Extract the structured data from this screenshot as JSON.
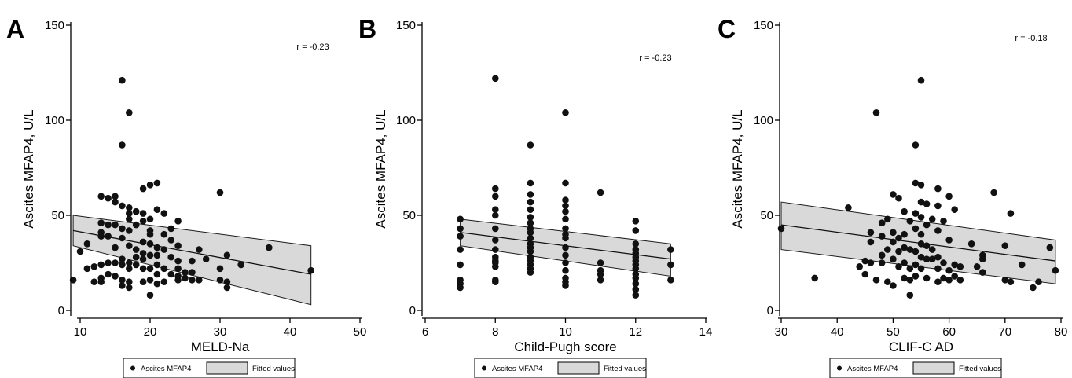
{
  "chart_data": [
    {
      "type": "scatter",
      "panel_label": "A",
      "xlabel": "MELD-Na",
      "ylabel": "Ascites MFAP4, U/L",
      "xlim": [
        8,
        50
      ],
      "ylim": [
        -5,
        152
      ],
      "xticks": [
        10,
        20,
        30,
        40,
        50
      ],
      "yticks": [
        0,
        50,
        100,
        150
      ],
      "annotation": "r = -0.23",
      "legend": {
        "placement": "bottom",
        "entries": [
          "Ascites MFAP4",
          "Fitted values"
        ]
      },
      "fit": {
        "x": [
          9,
          43
        ],
        "y": [
          42,
          19
        ],
        "ci_upper": [
          50,
          34
        ],
        "ci_lower": [
          34,
          3
        ]
      },
      "points": [
        [
          9,
          16
        ],
        [
          10,
          31
        ],
        [
          11,
          35
        ],
        [
          11,
          22
        ],
        [
          12,
          15
        ],
        [
          12,
          23
        ],
        [
          13,
          60
        ],
        [
          13,
          46
        ],
        [
          13,
          41
        ],
        [
          13,
          39
        ],
        [
          13,
          24
        ],
        [
          13,
          17
        ],
        [
          13,
          15
        ],
        [
          14,
          59
        ],
        [
          14,
          45
        ],
        [
          14,
          39
        ],
        [
          14,
          25
        ],
        [
          14,
          19
        ],
        [
          15,
          60
        ],
        [
          15,
          57
        ],
        [
          15,
          45
        ],
        [
          15,
          33
        ],
        [
          15,
          25
        ],
        [
          15,
          18
        ],
        [
          16,
          121
        ],
        [
          16,
          87
        ],
        [
          16,
          55
        ],
        [
          16,
          43
        ],
        [
          16,
          38
        ],
        [
          16,
          27
        ],
        [
          16,
          24
        ],
        [
          16,
          16
        ],
        [
          16,
          13
        ],
        [
          17,
          104
        ],
        [
          17,
          54
        ],
        [
          17,
          51
        ],
        [
          17,
          48
        ],
        [
          17,
          42
        ],
        [
          17,
          34
        ],
        [
          17,
          25
        ],
        [
          17,
          22
        ],
        [
          17,
          15
        ],
        [
          17,
          12
        ],
        [
          18,
          52
        ],
        [
          18,
          45
        ],
        [
          18,
          32
        ],
        [
          18,
          28
        ],
        [
          18,
          24
        ],
        [
          19,
          64
        ],
        [
          19,
          51
        ],
        [
          19,
          47
        ],
        [
          19,
          36
        ],
        [
          19,
          30
        ],
        [
          19,
          27
        ],
        [
          19,
          22
        ],
        [
          19,
          15
        ],
        [
          20,
          66
        ],
        [
          20,
          48
        ],
        [
          20,
          42
        ],
        [
          20,
          40
        ],
        [
          20,
          35
        ],
        [
          20,
          29
        ],
        [
          20,
          22
        ],
        [
          20,
          16
        ],
        [
          20,
          8
        ],
        [
          21,
          67
        ],
        [
          21,
          53
        ],
        [
          21,
          33
        ],
        [
          21,
          29
        ],
        [
          21,
          24
        ],
        [
          21,
          19
        ],
        [
          21,
          14
        ],
        [
          22,
          51
        ],
        [
          22,
          40
        ],
        [
          22,
          32
        ],
        [
          22,
          22
        ],
        [
          22,
          15
        ],
        [
          23,
          43
        ],
        [
          23,
          37
        ],
        [
          23,
          28
        ],
        [
          23,
          19
        ],
        [
          24,
          47
        ],
        [
          24,
          34
        ],
        [
          24,
          26
        ],
        [
          24,
          22
        ],
        [
          24,
          18
        ],
        [
          24,
          16
        ],
        [
          25,
          20
        ],
        [
          25,
          17
        ],
        [
          26,
          26
        ],
        [
          26,
          20
        ],
        [
          26,
          16
        ],
        [
          27,
          32
        ],
        [
          27,
          16
        ],
        [
          28,
          27
        ],
        [
          30,
          62
        ],
        [
          30,
          22
        ],
        [
          30,
          16
        ],
        [
          31,
          29
        ],
        [
          31,
          15
        ],
        [
          31,
          12
        ],
        [
          33,
          24
        ],
        [
          37,
          33
        ],
        [
          43,
          21
        ]
      ]
    },
    {
      "type": "scatter",
      "panel_label": "B",
      "xlabel": "Child-Pugh score",
      "ylabel": "Ascites MFAP4, U/L",
      "xlim": [
        5.8,
        14.3
      ],
      "ylim": [
        -5,
        152
      ],
      "xticks": [
        6,
        8,
        10,
        12,
        14
      ],
      "yticks": [
        0,
        50,
        100,
        150
      ],
      "annotation": "r = -0.23",
      "legend": {
        "placement": "bottom",
        "entries": [
          "Ascites MFAP4",
          "Fitted values"
        ]
      },
      "fit": {
        "x": [
          7,
          13
        ],
        "y": [
          41,
          27
        ],
        "ci_upper": [
          48,
          35
        ],
        "ci_lower": [
          34,
          18
        ]
      },
      "points": [
        [
          7,
          48
        ],
        [
          7,
          43
        ],
        [
          7,
          39
        ],
        [
          7,
          32
        ],
        [
          7,
          24
        ],
        [
          7,
          16
        ],
        [
          7,
          14
        ],
        [
          7,
          12
        ],
        [
          8,
          122
        ],
        [
          8,
          64
        ],
        [
          8,
          60
        ],
        [
          8,
          53
        ],
        [
          8,
          50
        ],
        [
          8,
          43
        ],
        [
          8,
          37
        ],
        [
          8,
          32
        ],
        [
          8,
          28
        ],
        [
          8,
          26
        ],
        [
          8,
          25
        ],
        [
          8,
          23
        ],
        [
          8,
          16
        ],
        [
          8,
          15
        ],
        [
          9,
          87
        ],
        [
          9,
          67
        ],
        [
          9,
          61
        ],
        [
          9,
          57
        ],
        [
          9,
          53
        ],
        [
          9,
          49
        ],
        [
          9,
          46
        ],
        [
          9,
          43
        ],
        [
          9,
          41
        ],
        [
          9,
          38
        ],
        [
          9,
          35
        ],
        [
          9,
          33
        ],
        [
          9,
          31
        ],
        [
          9,
          28
        ],
        [
          9,
          26
        ],
        [
          9,
          24
        ],
        [
          9,
          22
        ],
        [
          9,
          20
        ],
        [
          10,
          104
        ],
        [
          10,
          67
        ],
        [
          10,
          58
        ],
        [
          10,
          55
        ],
        [
          10,
          52
        ],
        [
          10,
          48
        ],
        [
          10,
          43
        ],
        [
          10,
          40
        ],
        [
          10,
          38
        ],
        [
          10,
          33
        ],
        [
          10,
          29
        ],
        [
          10,
          25
        ],
        [
          10,
          21
        ],
        [
          10,
          17
        ],
        [
          10,
          15
        ],
        [
          10,
          13
        ],
        [
          11,
          62
        ],
        [
          11,
          25
        ],
        [
          11,
          21
        ],
        [
          11,
          19
        ],
        [
          11,
          16
        ],
        [
          12,
          47
        ],
        [
          12,
          42
        ],
        [
          12,
          35
        ],
        [
          12,
          32
        ],
        [
          12,
          30
        ],
        [
          12,
          28
        ],
        [
          12,
          26
        ],
        [
          12,
          24
        ],
        [
          12,
          22
        ],
        [
          12,
          19
        ],
        [
          12,
          17
        ],
        [
          12,
          14
        ],
        [
          12,
          11
        ],
        [
          12,
          8
        ],
        [
          13,
          32
        ],
        [
          13,
          24
        ],
        [
          13,
          16
        ]
      ]
    },
    {
      "type": "scatter",
      "panel_label": "C",
      "xlabel": "CLIF-C AD",
      "ylabel": "Ascites MFAP4, U/L",
      "xlim": [
        29.5,
        80
      ],
      "ylim": [
        -5,
        152
      ],
      "xticks": [
        30,
        40,
        50,
        60,
        70,
        80
      ],
      "yticks": [
        0,
        50,
        100,
        150
      ],
      "annotation": "r = -0.18",
      "legend": {
        "placement": "bottom",
        "entries": [
          "Ascites MFAP4",
          "Fitted values"
        ]
      },
      "fit": {
        "x": [
          30,
          79
        ],
        "y": [
          45,
          26
        ],
        "ci_upper": [
          57,
          37
        ],
        "ci_lower": [
          32,
          14
        ]
      },
      "points": [
        [
          30,
          43
        ],
        [
          36,
          17
        ],
        [
          42,
          54
        ],
        [
          44,
          23
        ],
        [
          45,
          26
        ],
        [
          45,
          19
        ],
        [
          46,
          41
        ],
        [
          46,
          36
        ],
        [
          46,
          25
        ],
        [
          47,
          104
        ],
        [
          47,
          16
        ],
        [
          48,
          46
        ],
        [
          48,
          39
        ],
        [
          48,
          29
        ],
        [
          48,
          25
        ],
        [
          49,
          48
        ],
        [
          49,
          32
        ],
        [
          49,
          15
        ],
        [
          50,
          61
        ],
        [
          50,
          41
        ],
        [
          50,
          36
        ],
        [
          50,
          27
        ],
        [
          50,
          13
        ],
        [
          51,
          59
        ],
        [
          51,
          38
        ],
        [
          51,
          31
        ],
        [
          51,
          23
        ],
        [
          52,
          52
        ],
        [
          52,
          40
        ],
        [
          52,
          33
        ],
        [
          52,
          25
        ],
        [
          52,
          17
        ],
        [
          53,
          47
        ],
        [
          53,
          32
        ],
        [
          53,
          22
        ],
        [
          53,
          16
        ],
        [
          53,
          8
        ],
        [
          54,
          87
        ],
        [
          54,
          67
        ],
        [
          54,
          51
        ],
        [
          54,
          43
        ],
        [
          54,
          31
        ],
        [
          54,
          24
        ],
        [
          54,
          18
        ],
        [
          55,
          121
        ],
        [
          55,
          66
        ],
        [
          55,
          57
        ],
        [
          55,
          49
        ],
        [
          55,
          40
        ],
        [
          55,
          35
        ],
        [
          55,
          28
        ],
        [
          55,
          22
        ],
        [
          56,
          56
        ],
        [
          56,
          45
        ],
        [
          56,
          34
        ],
        [
          56,
          27
        ],
        [
          56,
          17
        ],
        [
          57,
          48
        ],
        [
          57,
          32
        ],
        [
          57,
          27
        ],
        [
          58,
          64
        ],
        [
          58,
          55
        ],
        [
          58,
          42
        ],
        [
          58,
          28
        ],
        [
          58,
          22
        ],
        [
          58,
          15
        ],
        [
          59,
          47
        ],
        [
          59,
          25
        ],
        [
          59,
          17
        ],
        [
          60,
          60
        ],
        [
          60,
          37
        ],
        [
          60,
          21
        ],
        [
          60,
          16
        ],
        [
          61,
          53
        ],
        [
          61,
          24
        ],
        [
          61,
          18
        ],
        [
          62,
          23
        ],
        [
          62,
          16
        ],
        [
          64,
          35
        ],
        [
          65,
          23
        ],
        [
          66,
          29
        ],
        [
          66,
          27
        ],
        [
          66,
          20
        ],
        [
          68,
          62
        ],
        [
          70,
          34
        ],
        [
          70,
          16
        ],
        [
          71,
          51
        ],
        [
          71,
          15
        ],
        [
          73,
          24
        ],
        [
          75,
          12
        ],
        [
          76,
          15
        ],
        [
          78,
          33
        ],
        [
          79,
          21
        ]
      ]
    }
  ]
}
